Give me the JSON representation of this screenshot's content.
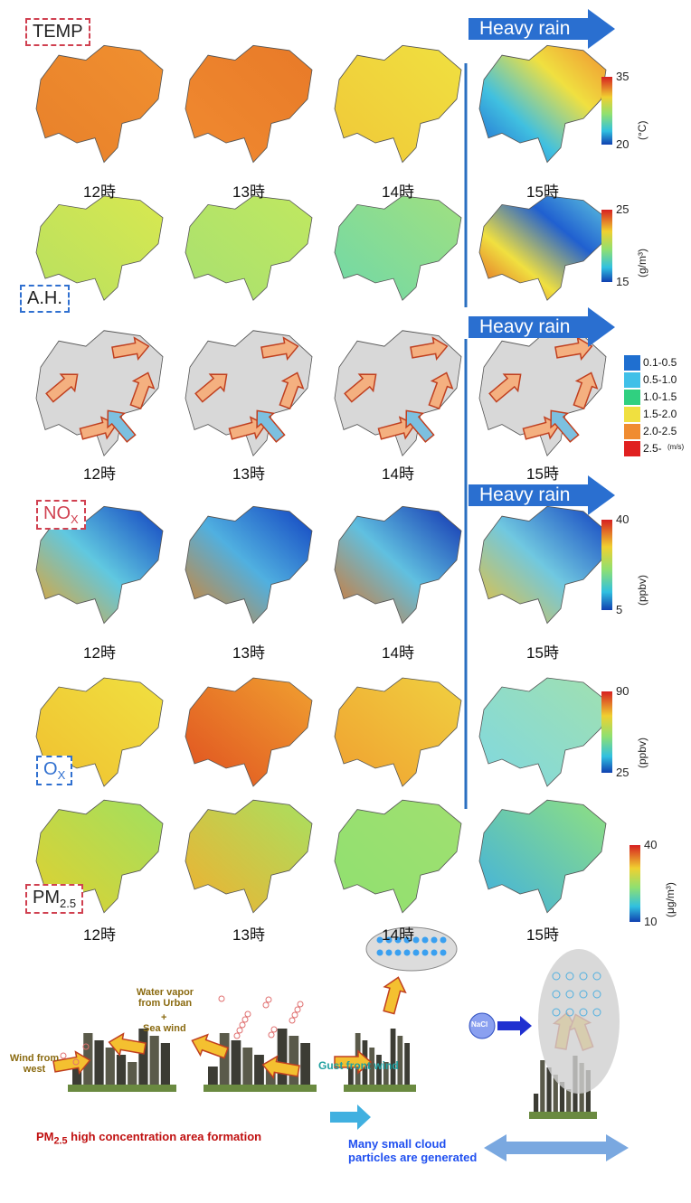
{
  "rows": [
    {
      "label": {
        "text": "TEMP"
      },
      "heavy_rain": "Heavy rain",
      "times": [
        "12時",
        "13時",
        "14時",
        "15時"
      ],
      "colorbar": {
        "ticks": [
          35,
          20
        ],
        "unit": "(°C)"
      }
    },
    {
      "label": {
        "text": "A.H."
      },
      "colorbar": {
        "ticks": [
          25,
          15
        ],
        "unit": "(g/m³)"
      }
    },
    {
      "heavy_rain": "Heavy rain",
      "times": [
        "12時",
        "13時",
        "14時",
        "15時"
      ],
      "wind_legend": {
        "items": [
          "0.1-0.5",
          "0.5-1.0",
          "1.0-1.5",
          "1.5-2.0",
          "2.0-2.5",
          "2.5-"
        ],
        "unit": "(m/s)"
      }
    },
    {
      "label": {
        "text": "NO",
        "sub": "X"
      },
      "heavy_rain": "Heavy rain",
      "times": [
        "12時",
        "13時",
        "14時",
        "15時"
      ],
      "colorbar": {
        "ticks": [
          40,
          5
        ],
        "unit": "(ppbv)"
      }
    },
    {
      "label": {
        "text": "O",
        "sub": "X"
      },
      "colorbar": {
        "ticks": [
          90,
          25
        ],
        "unit": "(ppbv)"
      }
    },
    {
      "label": {
        "text": "PM",
        "sub": "2.5"
      },
      "times": [
        "12時",
        "13時",
        "14時",
        "15時"
      ],
      "colorbar": {
        "ticks": [
          40,
          10
        ],
        "unit": "(μg/m³)"
      }
    }
  ],
  "bottom": {
    "wind_west": "Wind from west",
    "water_vapor": "Water vapor from Urban",
    "plus": "+",
    "sea_wind": "Sea wind",
    "gust": "Gust front wind",
    "nacl": "NaCl",
    "pm_caption": {
      "text": "PM",
      "sub": "2.5",
      "rest": " high concentration area formation"
    },
    "cloud_caption": "Many small cloud particles are generated"
  }
}
